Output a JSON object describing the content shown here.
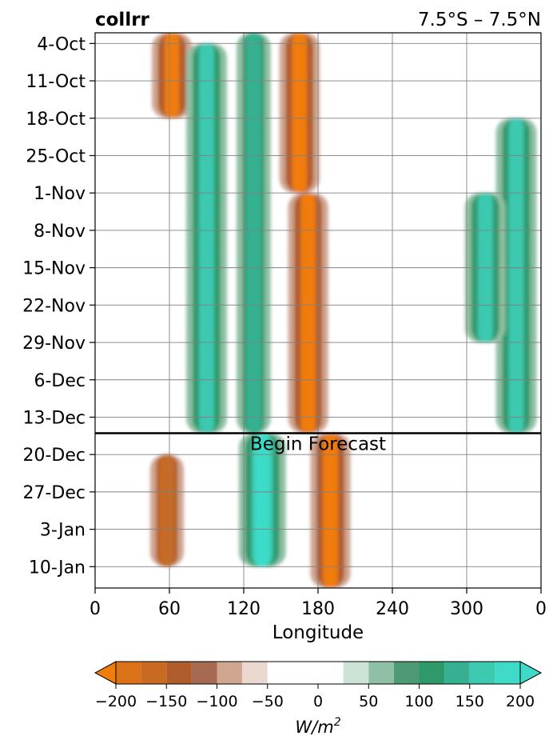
{
  "chart_data": {
    "type": "heatmap",
    "title_left": "collrr",
    "title_right": "7.5°S – 7.5°N",
    "xlabel": "Longitude",
    "x_ticks": [
      "0",
      "60",
      "120",
      "180",
      "240",
      "300",
      "0"
    ],
    "x_tick_values": [
      0,
      60,
      120,
      180,
      240,
      300,
      360
    ],
    "xlim": [
      0,
      360
    ],
    "y_ticks": [
      "4-Oct",
      "11-Oct",
      "18-Oct",
      "25-Oct",
      "1-Nov",
      "8-Nov",
      "15-Nov",
      "22-Nov",
      "29-Nov",
      "6-Dec",
      "13-Dec",
      "20-Dec",
      "27-Dec",
      "3-Jan",
      "10-Jan"
    ],
    "ylim": [
      "2-Oct",
      "14-Jan"
    ],
    "grid": true,
    "annotation": "Begin Forecast",
    "forecast_start": "16-Dec",
    "colorbar": {
      "label": "W/m²",
      "label_base": "W/m",
      "label_exp": "2",
      "ticks": [
        "−200",
        "−150",
        "−100",
        "−50",
        "0",
        "50",
        "100",
        "150",
        "200"
      ],
      "tick_values": [
        -200,
        -150,
        -100,
        -50,
        0,
        50,
        100,
        150,
        200
      ],
      "levels": [
        -200,
        -175,
        -150,
        -125,
        -100,
        -75,
        -50,
        -25,
        25,
        50,
        75,
        100,
        125,
        150,
        175,
        200
      ],
      "colors": [
        "#f07c0a",
        "#dc7218",
        "#c86a22",
        "#b05c2c",
        "#a56a50",
        "#d0a690",
        "#ead8d0",
        "#ffffff",
        "#ffffff",
        "#cde3d6",
        "#8fbfa4",
        "#4e9a74",
        "#2e9a6a",
        "#36b090",
        "#3dc8b0",
        "#3edcc8"
      ],
      "extend": "both"
    },
    "features": [
      {
        "lon": 62,
        "from": "2-Oct",
        "to": "18-Oct",
        "value": -200
      },
      {
        "lon": 90,
        "from": "4-Oct",
        "to": "16-Dec",
        "value": 150
      },
      {
        "lon": 128,
        "from": "2-Oct",
        "to": "16-Dec",
        "value": 125
      },
      {
        "lon": 165,
        "from": "2-Oct",
        "to": "1-Nov",
        "value": -200
      },
      {
        "lon": 172,
        "from": "1-Nov",
        "to": "16-Dec",
        "value": -200
      },
      {
        "lon": 190,
        "from": "16-Dec",
        "to": "14-Jan",
        "value": -200
      },
      {
        "lon": 135,
        "from": "16-Dec",
        "to": "10-Jan",
        "value": 175
      },
      {
        "lon": 58,
        "from": "20-Dec",
        "to": "10-Jan",
        "value": -175
      },
      {
        "lon": 340,
        "from": "18-Oct",
        "to": "16-Dec",
        "value": 150
      },
      {
        "lon": 315,
        "from": "1-Nov",
        "to": "29-Nov",
        "value": 150
      }
    ]
  }
}
